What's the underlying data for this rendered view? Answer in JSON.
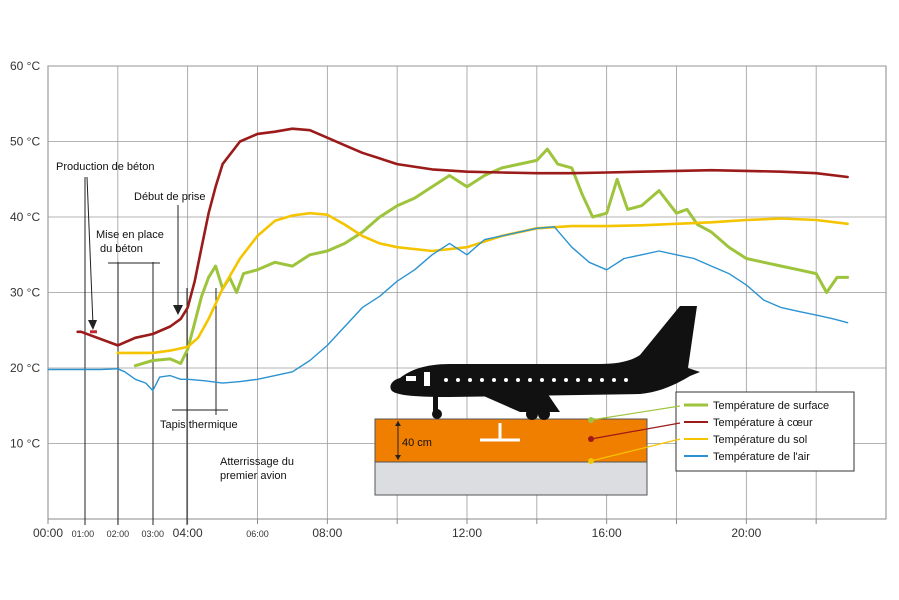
{
  "chart_data": {
    "type": "line",
    "x_unit": "hours",
    "xlim": [
      0,
      24
    ],
    "ylim": [
      0,
      60
    ],
    "grid": true,
    "legend_position": "right, beside the pavement section",
    "y_ticks": [
      {
        "value": 10,
        "label": "10 °C"
      },
      {
        "value": 20,
        "label": "20 °C"
      },
      {
        "value": 30,
        "label": "30 °C"
      },
      {
        "value": 40,
        "label": "40 °C"
      },
      {
        "value": 50,
        "label": "50 °C"
      },
      {
        "value": 60,
        "label": "60 °C"
      }
    ],
    "x_ticks": [
      {
        "value": 0,
        "label": "00:00",
        "size": "large"
      },
      {
        "value": 1,
        "label": "01:00",
        "size": "small"
      },
      {
        "value": 2,
        "label": "02:00",
        "size": "small"
      },
      {
        "value": 3,
        "label": "03:00",
        "size": "small"
      },
      {
        "value": 4,
        "label": "04:00",
        "size": "large"
      },
      {
        "value": 6,
        "label": "06:00",
        "size": "small"
      },
      {
        "value": 8,
        "label": "08:00",
        "size": "large"
      },
      {
        "value": 12,
        "label": "12:00",
        "size": "large"
      },
      {
        "value": 16,
        "label": "16:00",
        "size": "large"
      },
      {
        "value": 20,
        "label": "20:00",
        "size": "large"
      }
    ],
    "series": [
      {
        "name": "Température de surface",
        "color": "#9dc43c",
        "x": [
          2.5,
          3.0,
          3.5,
          3.8,
          4.0,
          4.2,
          4.4,
          4.6,
          4.8,
          5.0,
          5.2,
          5.4,
          5.6,
          6.0,
          6.5,
          7.0,
          7.5,
          8.0,
          8.5,
          9.0,
          9.5,
          10.0,
          10.5,
          11.0,
          11.5,
          12.0,
          12.5,
          13.0,
          13.5,
          14.0,
          14.3,
          14.6,
          15.0,
          15.3,
          15.6,
          16.0,
          16.3,
          16.6,
          17.0,
          17.5,
          18.0,
          18.3,
          18.6,
          19.0,
          19.5,
          20.0,
          20.5,
          21.0,
          21.5,
          22.0,
          22.3,
          22.6,
          22.9
        ],
        "values": [
          20.3,
          21.0,
          21.2,
          20.6,
          22.5,
          26.0,
          29.5,
          32.0,
          33.5,
          30.5,
          32.0,
          30.0,
          32.5,
          33.0,
          34.0,
          33.5,
          35.0,
          35.5,
          36.5,
          38.0,
          40.0,
          41.5,
          42.5,
          44.0,
          45.5,
          44.0,
          45.5,
          46.5,
          47.0,
          47.5,
          49.0,
          47.0,
          46.5,
          43.0,
          40.0,
          40.5,
          45.0,
          41.0,
          41.5,
          43.5,
          40.5,
          41.0,
          39.0,
          38.0,
          36.0,
          34.5,
          34.0,
          33.5,
          33.0,
          32.5,
          30.0,
          32.0,
          32.0
        ]
      },
      {
        "name": "Température à cœur",
        "color": "#9b1a1a",
        "x": [
          0.85,
          0.95,
          2.0,
          2.5,
          3.0,
          3.5,
          3.8,
          4.0,
          4.2,
          4.4,
          4.6,
          4.8,
          5.0,
          5.5,
          6.0,
          6.5,
          7.0,
          7.5,
          8.0,
          8.5,
          9.0,
          10.0,
          11.0,
          12.0,
          13.0,
          14.0,
          15.0,
          16.0,
          17.0,
          18.0,
          19.0,
          20.0,
          21.0,
          22.0,
          22.9
        ],
        "values": [
          24.8,
          24.8,
          23.0,
          24.0,
          24.5,
          25.5,
          26.5,
          28.0,
          31.5,
          36.0,
          40.5,
          44.0,
          47.0,
          50.0,
          51.0,
          51.3,
          51.7,
          51.5,
          50.5,
          49.5,
          48.5,
          47.0,
          46.3,
          46.0,
          45.9,
          45.8,
          45.8,
          45.9,
          46.0,
          46.1,
          46.2,
          46.1,
          46.0,
          45.8,
          45.3
        ]
      },
      {
        "name": "Température du sol",
        "color": "#f5c400",
        "x": [
          2.0,
          2.5,
          3.0,
          3.5,
          4.0,
          4.3,
          4.6,
          5.0,
          5.5,
          6.0,
          6.5,
          7.0,
          7.5,
          8.0,
          8.5,
          9.0,
          9.5,
          10.0,
          11.0,
          12.0,
          13.0,
          14.0,
          15.0,
          16.0,
          17.0,
          18.0,
          19.0,
          20.0,
          21.0,
          22.0,
          22.9
        ],
        "values": [
          22.0,
          22.0,
          22.0,
          22.3,
          22.8,
          24.0,
          26.5,
          30.5,
          34.5,
          37.5,
          39.5,
          40.2,
          40.5,
          40.3,
          39.0,
          37.5,
          36.5,
          36.0,
          35.5,
          36.0,
          37.5,
          38.5,
          38.8,
          38.8,
          38.9,
          39.1,
          39.3,
          39.6,
          39.8,
          39.6,
          39.1
        ]
      },
      {
        "name": "Température de l'air",
        "color": "#2b93d1",
        "x": [
          0,
          0.5,
          1.0,
          1.5,
          2.0,
          2.2,
          2.5,
          2.8,
          3.0,
          3.2,
          3.5,
          3.8,
          4.0,
          4.5,
          5.0,
          5.5,
          6.0,
          6.5,
          7.0,
          7.5,
          8.0,
          8.5,
          9.0,
          9.5,
          10.0,
          10.5,
          11.0,
          11.5,
          12.0,
          12.5,
          13.0,
          13.5,
          14.0,
          14.5,
          15.0,
          15.5,
          16.0,
          16.5,
          17.0,
          17.5,
          18.0,
          18.5,
          19.0,
          19.5,
          20.0,
          20.5,
          21.0,
          21.5,
          22.0,
          22.5,
          22.9
        ],
        "values": [
          19.8,
          19.8,
          19.8,
          19.8,
          19.9,
          19.5,
          18.5,
          18.0,
          17.0,
          18.8,
          19.0,
          18.5,
          18.5,
          18.3,
          18.0,
          18.2,
          18.5,
          19.0,
          19.5,
          21.0,
          23.0,
          25.5,
          28.0,
          29.5,
          31.5,
          33.0,
          35.0,
          36.5,
          35.0,
          37.0,
          37.5,
          38.0,
          38.5,
          38.7,
          36.0,
          34.0,
          33.0,
          34.5,
          35.0,
          35.5,
          35.0,
          34.5,
          33.5,
          32.5,
          31.0,
          29.0,
          28.0,
          27.5,
          27.0,
          26.5,
          26.0
        ]
      }
    ],
    "annotations": {
      "production_beton": "Production de béton",
      "mise_en_place_1": "Mise en place",
      "mise_en_place_2": "du béton",
      "debut_de_prise": "Début de prise",
      "tapis_thermique": "Tapis thermique",
      "atterrissage_1": "Atterrissage du",
      "atterrissage_2": "premier avion",
      "thickness": "40 cm"
    },
    "illustration": {
      "icon": "airplane-icon",
      "slab_color": "#f07f00",
      "base_color": "#dcdde1"
    }
  }
}
